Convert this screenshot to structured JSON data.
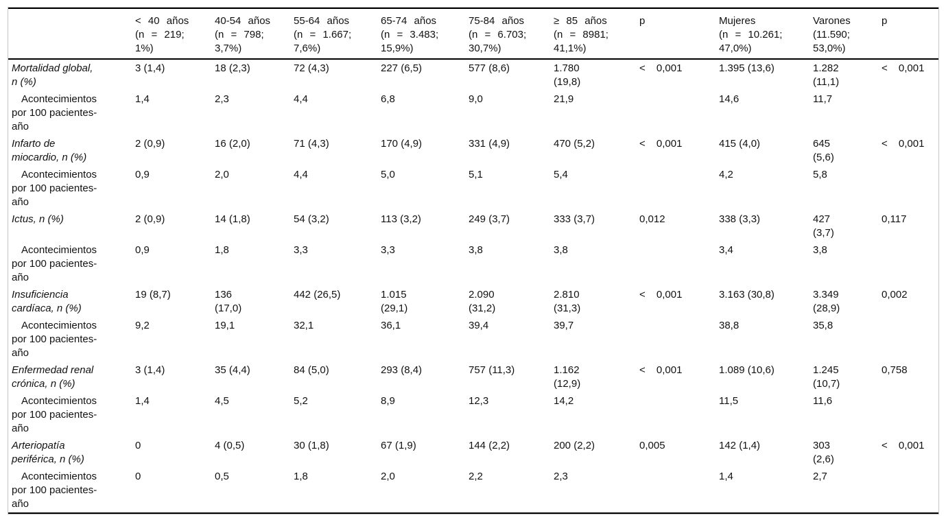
{
  "table": {
    "corner_header": "",
    "headers": {
      "columns": [
        {
          "label": "< 40 años\n(n = 219;\n1%)"
        },
        {
          "label": "40-54 años\n(n = 798;\n3,7%)"
        },
        {
          "label": "55-64 años\n(n = 1.667;\n7,6%)"
        },
        {
          "label": "65-74 años\n(n = 3.483;\n15,9%)"
        },
        {
          "label": "75-84 años\n(n = 6.703;\n30,7%)"
        },
        {
          "label": "≥ 85 años\n(n = 8981;\n41,1%)"
        },
        {
          "label": "p"
        },
        {
          "label": "Mujeres\n(n = 10.261;\n47,0%)"
        },
        {
          "label": "Varones\n(11.590;\n53,0%)"
        },
        {
          "label": "p"
        }
      ]
    },
    "events_label": "Acontecimientos\npor 100 pacientes-\naño",
    "outcomes": [
      {
        "name": "Mortalidad global,\nn (%)",
        "values": [
          "3 (1,4)",
          "18 (2,3)",
          "72 (4,3)",
          "227 (6,5)",
          "577 (8,6)",
          "1.780\n(19,8)",
          "< 0,001",
          "1.395 (13,6)",
          "1.282\n(11,1)",
          "< 0,001"
        ],
        "events": [
          "1,4",
          "2,3",
          "4,4",
          "6,8",
          "9,0",
          "21,9",
          "",
          "14,6",
          "11,7",
          ""
        ]
      },
      {
        "name": "Infarto de\nmiocardio, n (%)",
        "values": [
          "2 (0,9)",
          "16 (2,0)",
          "71 (4,3)",
          "170 (4,9)",
          "331 (4,9)",
          "470 (5,2)",
          "< 0,001",
          "415 (4,0)",
          "645\n(5,6)",
          "< 0,001"
        ],
        "events": [
          "0,9",
          "2,0",
          "4,4",
          "5,0",
          "5,1",
          "5,4",
          "",
          "4,2",
          "5,8",
          ""
        ]
      },
      {
        "name": "Ictus, n (%)",
        "values": [
          "2 (0,9)",
          "14 (1,8)",
          "54 (3,2)",
          "113 (3,2)",
          "249 (3,7)",
          "333 (3,7)",
          "0,012",
          "338 (3,3)",
          "427\n(3,7)",
          "0,117"
        ],
        "events": [
          "0,9",
          "1,8",
          "3,3",
          "3,3",
          "3,8",
          "3,8",
          "",
          "3,4",
          "3,8",
          ""
        ]
      },
      {
        "name": "Insuficiencia\ncardíaca, n (%)",
        "values": [
          "19 (8,7)",
          "136\n(17,0)",
          "442 (26,5)",
          "1.015\n(29,1)",
          "2.090\n(31,2)",
          "2.810\n(31,3)",
          "< 0,001",
          "3.163 (30,8)",
          "3.349\n(28,9)",
          "0,002"
        ],
        "events": [
          "9,2",
          "19,1",
          "32,1",
          "36,1",
          "39,4",
          "39,7",
          "",
          "38,8",
          "35,8",
          ""
        ]
      },
      {
        "name": "Enfermedad renal\ncrónica, n (%)",
        "values": [
          "3 (1,4)",
          "35 (4,4)",
          "84 (5,0)",
          "293 (8,4)",
          "757 (11,3)",
          "1.162\n(12,9)",
          "< 0,001",
          "1.089 (10,6)",
          "1.245\n(10,7)",
          "0,758"
        ],
        "events": [
          "1,4",
          "4,5",
          "5,2",
          "8,9",
          "12,3",
          "14,2",
          "",
          "11,5",
          "11,6",
          ""
        ]
      },
      {
        "name": "Arteriopatía\nperiférica, n (%)",
        "values": [
          "0",
          "4 (0,5)",
          "30 (1,8)",
          "67 (1,9)",
          "144 (2,2)",
          "200 (2,2)",
          "0,005",
          "142 (1,4)",
          "303\n(2,6)",
          "< 0,001"
        ],
        "events": [
          "0",
          "0,5",
          "1,8",
          "2,0",
          "2,2",
          "2,3",
          "",
          "1,4",
          "2,7",
          ""
        ]
      }
    ]
  }
}
